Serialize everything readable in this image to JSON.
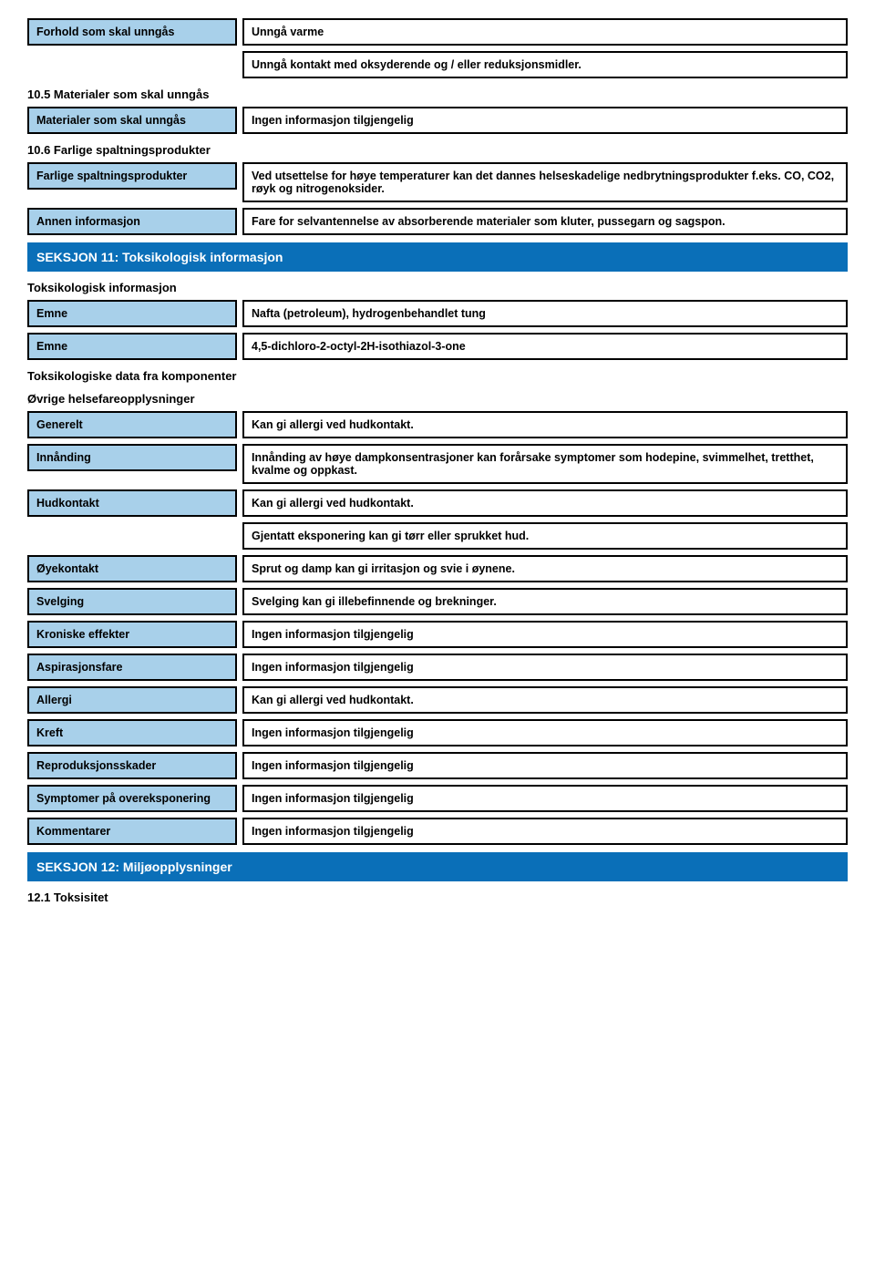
{
  "colors": {
    "label_bg": "#a8d0ea",
    "section_bg": "#0a6fb8",
    "section_fg": "#ffffff",
    "border": "#000000",
    "page_bg": "#ffffff"
  },
  "r1": {
    "label": "Forhold som skal unngås",
    "value": "Unngå varme"
  },
  "r1b": {
    "value": "Unngå kontakt med oksyderende og / eller reduksjonsmidler."
  },
  "h1": "10.5 Materialer som skal unngås",
  "r2": {
    "label": "Materialer som skal unngås",
    "value": "Ingen informasjon tilgjengelig"
  },
  "h2": "10.6 Farlige spaltningsprodukter",
  "r3": {
    "label": "Farlige spaltningsprodukter",
    "value": "Ved utsettelse for høye temperaturer kan det dannes helseskadelige nedbrytningsprodukter f.eks. CO, CO2, røyk og nitrogenoksider."
  },
  "r4": {
    "label": "Annen informasjon",
    "value": "Fare for selvantennelse av absorberende materialer som kluter, pussegarn og sagspon."
  },
  "sec11": "SEKSJON 11: Toksikologisk informasjon",
  "h3": "Toksikologisk informasjon",
  "r5": {
    "label": "Emne",
    "value": "Nafta (petroleum), hydrogenbehandlet tung"
  },
  "r6": {
    "label": "Emne",
    "value": "4,5-dichloro-2-octyl-2H-isothiazol-3-one"
  },
  "h4": "Toksikologiske data fra komponenter",
  "h5": "Øvrige helsefareopplysninger",
  "r7": {
    "label": "Generelt",
    "value": "Kan gi allergi ved hudkontakt."
  },
  "r8": {
    "label": "Innånding",
    "value": "Innånding av høye dampkonsentrasjoner kan forårsake symptomer som hodepine, svimmelhet, tretthet, kvalme og oppkast."
  },
  "r9": {
    "label": "Hudkontakt",
    "value": "Kan gi allergi ved hudkontakt."
  },
  "r9b": {
    "value": "Gjentatt eksponering kan gi tørr eller sprukket hud."
  },
  "r10": {
    "label": "Øyekontakt",
    "value": "Sprut og damp kan gi irritasjon og svie i øynene."
  },
  "r11": {
    "label": "Svelging",
    "value": "Svelging kan gi illebefinnende og brekninger."
  },
  "r12": {
    "label": "Kroniske effekter",
    "value": "Ingen informasjon tilgjengelig"
  },
  "r13": {
    "label": "Aspirasjonsfare",
    "value": "Ingen informasjon tilgjengelig"
  },
  "r14": {
    "label": "Allergi",
    "value": "Kan gi allergi ved hudkontakt."
  },
  "r15": {
    "label": "Kreft",
    "value": "Ingen informasjon tilgjengelig"
  },
  "r16": {
    "label": "Reproduksjonsskader",
    "value": "Ingen informasjon tilgjengelig"
  },
  "r17": {
    "label": "Symptomer på overeksponering",
    "value": "Ingen informasjon tilgjengelig"
  },
  "r18": {
    "label": "Kommentarer",
    "value": "Ingen informasjon tilgjengelig"
  },
  "sec12": "SEKSJON 12: Miljøopplysninger",
  "h6": "12.1 Toksisitet"
}
